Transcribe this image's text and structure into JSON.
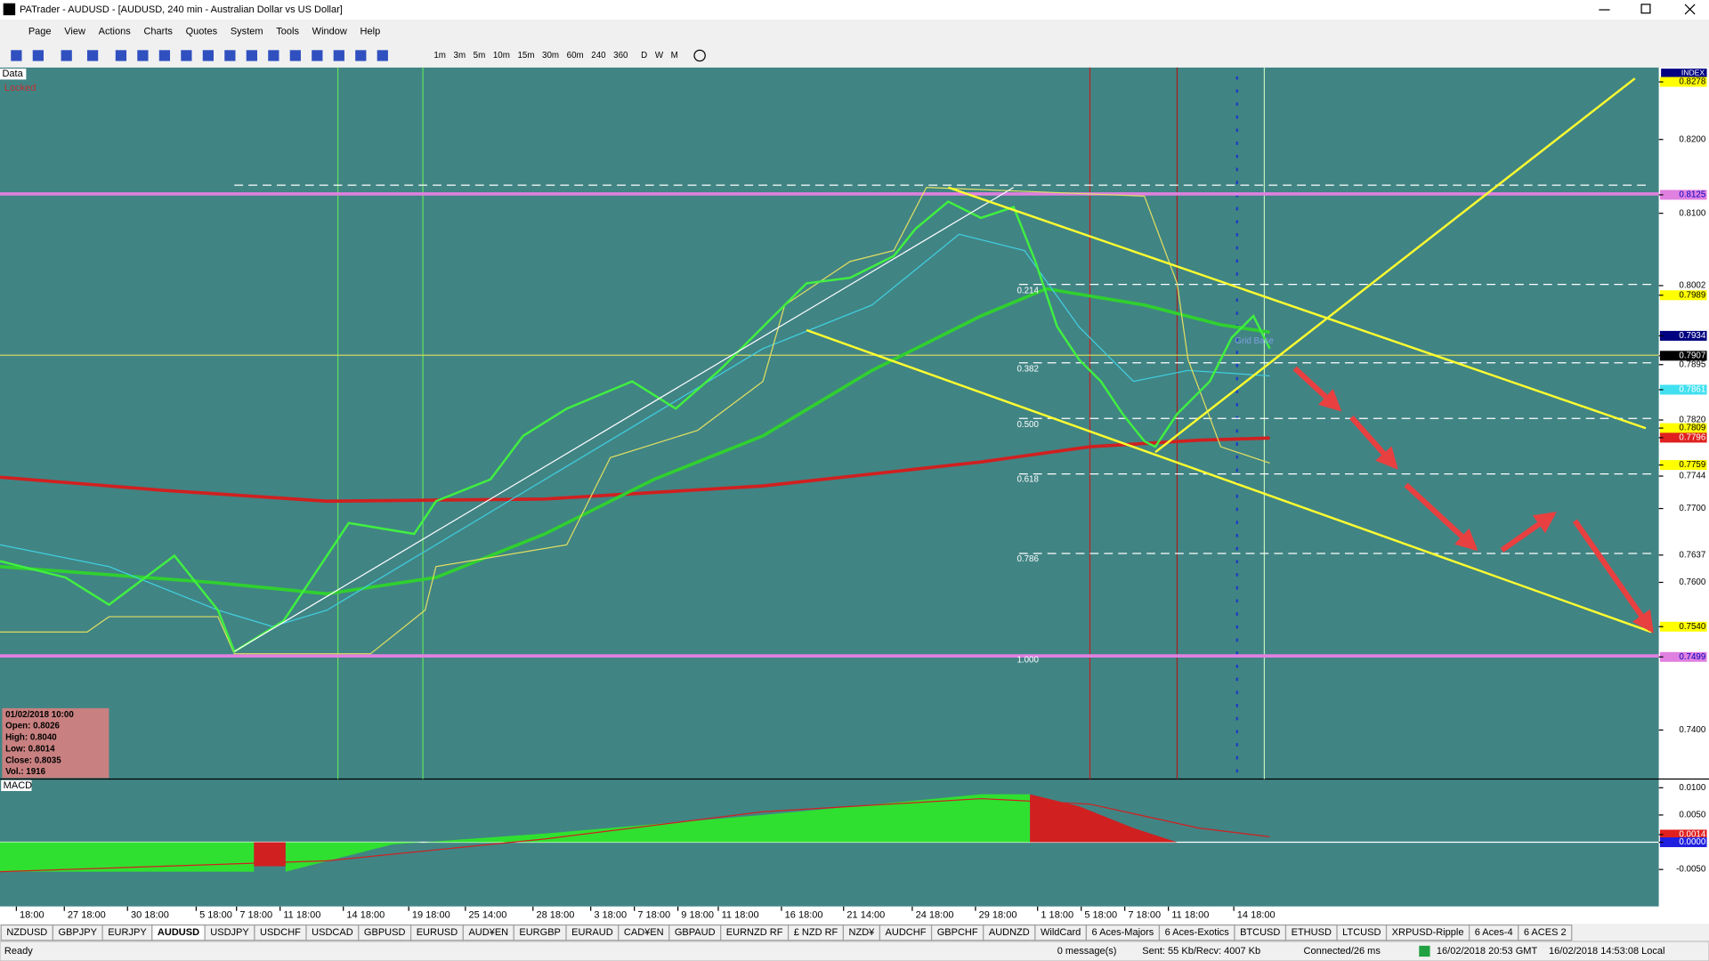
{
  "window": {
    "title": "PATrader - AUDUSD - [AUDUSD, 240 min - Australian Dollar vs US Dollar]"
  },
  "menu": [
    "Page",
    "View",
    "Actions",
    "Charts",
    "Quotes",
    "System",
    "Tools",
    "Window",
    "Help"
  ],
  "timeframes": [
    "1m",
    "3m",
    "5m",
    "10m",
    "15m",
    "30m",
    "60m",
    "240",
    "360",
    "D",
    "W",
    "M"
  ],
  "chart": {
    "data_label": "Data",
    "locked_label": "Locked",
    "index_label": "INDEX",
    "grid_label": "Grid Base",
    "macd_label": "MACD",
    "price_axis": [
      {
        "value": 0.8278,
        "label": "0.8278",
        "bg": "#ffff00",
        "fg": "#000000"
      },
      {
        "value": 0.82,
        "label": "0.8200"
      },
      {
        "value": 0.8125,
        "label": "0.8125",
        "bg": "#e080e0",
        "fg": "#0000c0"
      },
      {
        "value": 0.81,
        "label": "0.8100"
      },
      {
        "value": 0.8002,
        "label": "0.8002"
      },
      {
        "value": 0.7989,
        "label": "0.7989",
        "bg": "#ffff00",
        "fg": "#000000"
      },
      {
        "value": 0.7934,
        "label": "0.7934",
        "bg": "#000080",
        "fg": "#ffffff"
      },
      {
        "value": 0.7907,
        "label": "0.7907",
        "bg": "#000000",
        "fg": "#ffffff"
      },
      {
        "value": 0.7895,
        "label": "0.7895"
      },
      {
        "value": 0.7861,
        "label": "0.7861",
        "bg": "#40e0f0",
        "fg": "#ffffff"
      },
      {
        "value": 0.782,
        "label": "0.7820"
      },
      {
        "value": 0.7809,
        "label": "0.7809",
        "bg": "#ffff00",
        "fg": "#000000"
      },
      {
        "value": 0.7796,
        "label": "0.7796",
        "bg": "#e02020",
        "fg": "#ffffff"
      },
      {
        "value": 0.7759,
        "label": "0.7759",
        "bg": "#ffff00",
        "fg": "#000000"
      },
      {
        "value": 0.7744,
        "label": "0.7744"
      },
      {
        "value": 0.77,
        "label": "0.7700"
      },
      {
        "value": 0.7637,
        "label": "0.7637"
      },
      {
        "value": 0.76,
        "label": "0.7600"
      },
      {
        "value": 0.754,
        "label": "0.7540",
        "bg": "#ffff00",
        "fg": "#000000"
      },
      {
        "value": 0.7499,
        "label": "0.7499",
        "bg": "#e080e0",
        "fg": "#0000c0"
      },
      {
        "value": 0.74,
        "label": "0.7400"
      }
    ],
    "fib_levels": [
      "0.214",
      "0.382",
      "0.500",
      "0.618",
      "0.786",
      "1.000"
    ],
    "macd_axis": [
      {
        "value": 0.01,
        "label": "0.0100"
      },
      {
        "value": 0.005,
        "label": "0.0050"
      },
      {
        "value": 0.0014,
        "label": "0.0014",
        "bg": "#e02020",
        "fg": "#ffffff"
      },
      {
        "value": 0,
        "label": "0.0000",
        "bg": "#2020e0",
        "fg": "#ffffff"
      },
      {
        "value": -0.005,
        "label": "-0.0050"
      }
    ],
    "dates": [
      "18:00",
      "27 18:00",
      "30 18:00",
      "5 18:00",
      "7 18:00",
      "11 18:00",
      "14 18:00",
      "19 18:00",
      "25 14:00",
      "28 18:00",
      "3 18:00",
      "7 18:00",
      "9 18:00",
      "11 18:00",
      "16 18:00",
      "21 14:00",
      "24 18:00",
      "29 18:00",
      "1 18:00",
      "5 18:00",
      "7 18:00",
      "11 18:00",
      "14 18:00"
    ],
    "info": [
      "01/02/2018 10:00",
      "Open: 0.8026",
      "High: 0.8040",
      "Low: 0.8014",
      "Close: 0.8035",
      "Vol.: 1916"
    ]
  },
  "tabs": [
    "NZDUSD",
    "GBPJPY",
    "EURJPY",
    "AUDUSD",
    "USDJPY",
    "USDCHF",
    "USDCAD",
    "GBPUSD",
    "EURUSD",
    "AUD¥EN",
    "EURGBP",
    "EURAUD",
    "CAD¥EN",
    "GBPAUD",
    "EURNZD RF",
    "£ NZD RF",
    "NZD¥",
    "AUDCHF",
    "GBPCHF",
    "AUDNZD",
    "WildCard",
    "6 Aces-Majors",
    "6 Aces-Exotics",
    "BTCUSD",
    "ETHUSD",
    "LTCUSD",
    "XRPUSD-Ripple",
    "6 Aces-4",
    "6 ACES 2"
  ],
  "active_tab": 3,
  "status": {
    "ready": "Ready",
    "messages": "0 message(s)",
    "traffic": "Sent: 55 Kb/Recv: 4007 Kb",
    "connection": "Connected/26 ms",
    "gmt": "16/02/2018 20:53 GMT",
    "local": "16/02/2018 14:53:08 Local"
  }
}
